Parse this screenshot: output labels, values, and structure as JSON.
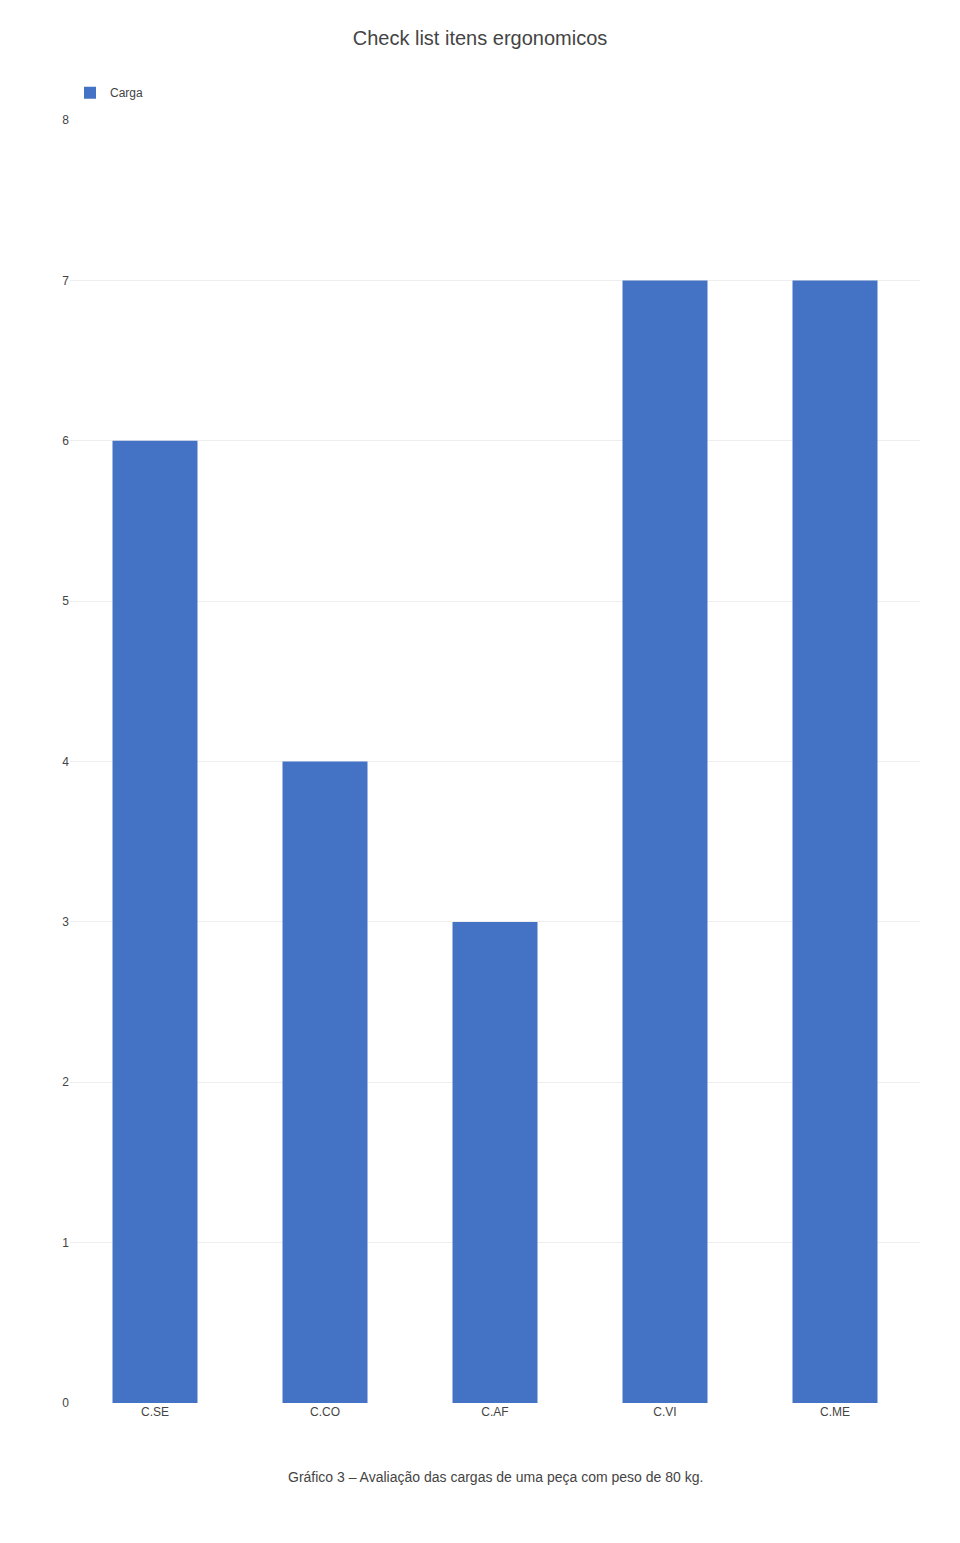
{
  "chart_data": {
    "type": "bar",
    "title": "Check list itens ergonomicos",
    "annotations": [
      "Gráfico 3 – Avaliação das cargas de uma peça com peso de 80 kg."
    ],
    "categories": [
      "C.SE",
      "C.CO",
      "C.AF",
      "C.VI",
      "C.ME"
    ],
    "series": [
      {
        "name": "Carga",
        "color": "#4472C4",
        "values": [
          6,
          4,
          3,
          7,
          7
        ]
      }
    ],
    "ylim": [
      0,
      8
    ],
    "yticks": [
      0,
      1,
      2,
      3,
      4,
      5,
      6,
      7,
      8
    ],
    "grid": true,
    "legend": "upper left"
  }
}
